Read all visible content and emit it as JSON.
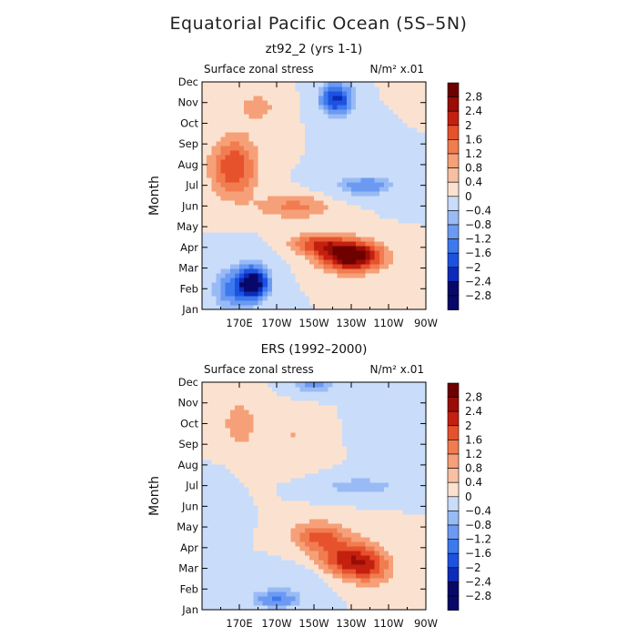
{
  "title": "Equatorial Pacific Ocean (5S–5N)",
  "colors": {
    "palette": [
      "#08086a",
      "#0b2bb8",
      "#1d52e0",
      "#3d79ee",
      "#6c9af2",
      "#99bbf5",
      "#c9dcfa",
      "#fbe2d0",
      "#f8c0a2",
      "#f6a079",
      "#f17c50",
      "#e6522c",
      "#c42010",
      "#9a0c06",
      "#6e0000"
    ]
  },
  "chart_data": [
    {
      "type": "heatmap",
      "subtitle": "zt92_2 (yrs 1-1)",
      "variable_label": "Surface zonal stress",
      "units_label": "N/m² x.01",
      "xlabel": "",
      "ylabel": "Month",
      "x_ticks": [
        "170E",
        "170W",
        "150W",
        "130W",
        "110W",
        "90W"
      ],
      "x_tick_values": [
        170,
        190,
        210,
        230,
        250,
        270
      ],
      "xlim": [
        150,
        270
      ],
      "y_ticks": [
        "Jan",
        "Feb",
        "Mar",
        "Apr",
        "May",
        "Jun",
        "Jul",
        "Aug",
        "Sep",
        "Oct",
        "Nov",
        "Dec"
      ],
      "ylim": [
        1,
        12
      ],
      "colorbar_levels": [
        "2.8",
        "2.4",
        "2",
        "1.6",
        "1.2",
        "0.8",
        "0.4",
        "0",
        "−0.4",
        "−0.8",
        "−1.2",
        "−1.6",
        "−2",
        "−2.4",
        "−2.8"
      ],
      "field_features": [
        {
          "lon": 230,
          "month": 3.6,
          "value": 3.0,
          "spread_lon": 16,
          "spread_month": 0.7
        },
        {
          "lon": 212,
          "month": 4.2,
          "value": 1.4,
          "spread_lon": 14,
          "spread_month": 0.5
        },
        {
          "lon": 178,
          "month": 2.3,
          "value": -3.0,
          "spread_lon": 9,
          "spread_month": 0.9
        },
        {
          "lon": 165,
          "month": 2.0,
          "value": -1.5,
          "spread_lon": 12,
          "spread_month": 1.2
        },
        {
          "lon": 222,
          "month": 11.2,
          "value": -2.5,
          "spread_lon": 10,
          "spread_month": 0.9
        },
        {
          "lon": 237,
          "month": 7.0,
          "value": -1.5,
          "spread_lon": 18,
          "spread_month": 0.55
        },
        {
          "lon": 167,
          "month": 7.9,
          "value": 1.6,
          "spread_lon": 12,
          "spread_month": 1.4
        },
        {
          "lon": 200,
          "month": 6.0,
          "value": 0.9,
          "spread_lon": 20,
          "spread_month": 0.6
        },
        {
          "lon": 180,
          "month": 10.8,
          "value": 0.5,
          "spread_lon": 14,
          "spread_month": 1.0
        },
        {
          "lon": 262,
          "month": 11.0,
          "value": 0.4,
          "spread_lon": 12,
          "spread_month": 1.5
        },
        {
          "lon": 250,
          "month": 9.0,
          "value": -0.5,
          "spread_lon": 16,
          "spread_month": 1.5
        }
      ]
    },
    {
      "type": "heatmap",
      "subtitle": "ERS (1992–2000)",
      "variable_label": "Surface zonal stress",
      "units_label": "N/m² x.01",
      "xlabel": "",
      "ylabel": "Month",
      "x_ticks": [
        "170E",
        "170W",
        "150W",
        "130W",
        "110W",
        "90W"
      ],
      "x_tick_values": [
        170,
        190,
        210,
        230,
        250,
        270
      ],
      "xlim": [
        150,
        270
      ],
      "y_ticks": [
        "Jan",
        "Feb",
        "Mar",
        "Apr",
        "May",
        "Jun",
        "Jul",
        "Aug",
        "Sep",
        "Oct",
        "Nov",
        "Dec"
      ],
      "ylim": [
        1,
        12
      ],
      "colorbar_levels": [
        "2.8",
        "2.4",
        "2",
        "1.6",
        "1.2",
        "0.8",
        "0.4",
        "0",
        "−0.4",
        "−0.8",
        "−1.2",
        "−1.6",
        "−2",
        "−2.4",
        "−2.8"
      ],
      "field_features": [
        {
          "lon": 228,
          "month": 3.5,
          "value": 1.7,
          "spread_lon": 16,
          "spread_month": 0.9
        },
        {
          "lon": 212,
          "month": 4.6,
          "value": 1.2,
          "spread_lon": 14,
          "spread_month": 0.7
        },
        {
          "lon": 240,
          "month": 3.0,
          "value": 1.0,
          "spread_lon": 12,
          "spread_month": 0.8
        },
        {
          "lon": 235,
          "month": 7.0,
          "value": -1.2,
          "spread_lon": 22,
          "spread_month": 0.45
        },
        {
          "lon": 190,
          "month": 1.5,
          "value": -1.6,
          "spread_lon": 16,
          "spread_month": 0.5
        },
        {
          "lon": 210,
          "month": 11.9,
          "value": -1.4,
          "spread_lon": 14,
          "spread_month": 0.5
        },
        {
          "lon": 250,
          "month": 10.5,
          "value": -0.7,
          "spread_lon": 12,
          "spread_month": 1.2
        },
        {
          "lon": 170,
          "month": 10.0,
          "value": 0.5,
          "spread_lon": 14,
          "spread_month": 2.0
        },
        {
          "lon": 200,
          "month": 9.5,
          "value": 0.4,
          "spread_lon": 12,
          "spread_month": 1.5
        },
        {
          "lon": 160,
          "month": 6.5,
          "value": -0.3,
          "spread_lon": 10,
          "spread_month": 1.5
        },
        {
          "lon": 195,
          "month": 2.5,
          "value": -0.6,
          "spread_lon": 22,
          "spread_month": 0.6
        }
      ]
    }
  ]
}
